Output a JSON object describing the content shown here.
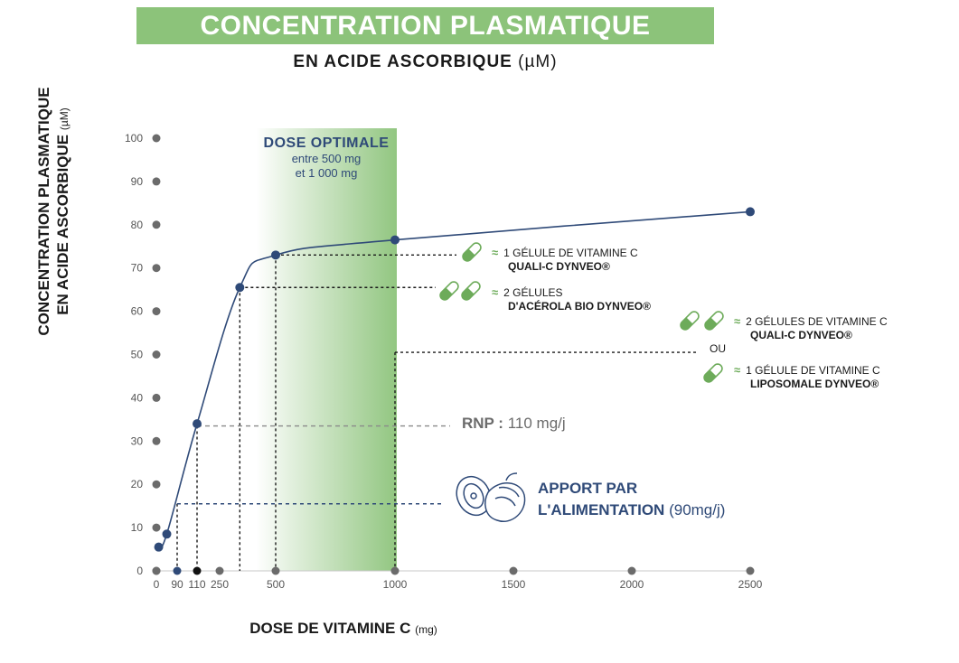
{
  "header": {
    "title": "CONCENTRATION PLASMATIQUE",
    "subtitle_main": "EN ACIDE ASCORBIQUE",
    "subtitle_unit": "(µM)"
  },
  "chart_data": {
    "type": "line",
    "ylabel_line1": "CONCENTRATION PLASMATIQUE",
    "ylabel_line2": "EN ACIDE ASCORBIQUE",
    "ylabel_unit": "(µM)",
    "xlabel": "DOSE DE VITAMINE C",
    "xlabel_unit": "(mg)",
    "ylim": [
      0,
      100
    ],
    "y_ticks": [
      0,
      10,
      20,
      30,
      40,
      50,
      60,
      70,
      80,
      90,
      100
    ],
    "x_ticks": [
      {
        "label": "0",
        "value": 0
      },
      {
        "label": "90",
        "value": 90
      },
      {
        "label": "110",
        "value": 110
      },
      {
        "label": "250",
        "value": 250
      },
      {
        "label": "500",
        "value": 500
      },
      {
        "label": "1000",
        "value": 1000
      },
      {
        "label": "1500",
        "value": 1500
      },
      {
        "label": "2000",
        "value": 2000
      },
      {
        "label": "2500",
        "value": 2500
      }
    ],
    "series": [
      {
        "points": [
          {
            "x": 10,
            "y": 5.5
          },
          {
            "x": 45,
            "y": 8.5
          },
          {
            "x": 110,
            "y": 34
          },
          {
            "x": 340,
            "y": 65.5
          },
          {
            "x": 500,
            "y": 73
          },
          {
            "x": 1000,
            "y": 76.5
          },
          {
            "x": 2500,
            "y": 83
          }
        ]
      }
    ],
    "optimal_range": [
      500,
      1000
    ],
    "guides": [
      {
        "x": 500,
        "y": 73
      },
      {
        "x": 340,
        "y": 65.5
      },
      {
        "x": 1000,
        "y": 50.5
      },
      {
        "x": 110,
        "y": 33.5
      },
      {
        "x": 90,
        "y": 15.5
      }
    ],
    "colors": {
      "line": "#2f4a78",
      "point": "#2f4a78",
      "axis_dot": "#6b6b6b",
      "band": "#8cc37a",
      "accent_green": "#6dab5a"
    }
  },
  "dose_optimale": {
    "heading": "DOSE OPTIMALE",
    "line1": "entre 500 mg",
    "line2": "et 1 000 mg"
  },
  "annotations": {
    "approx": "≈",
    "a1_line1": "1 GÉLULE DE VITAMINE C",
    "a1_line2": "QUALI-C DYNVEO®",
    "a2_line1": "2 GÉLULES",
    "a2_line2": "D'ACÉROLA BIO DYNVEO®",
    "a3_line1": "2 GÉLULES DE VITAMINE C",
    "a3_line2": "QUALI-C DYNVEO®",
    "ou": "OU",
    "a4_line1": "1 GÉLULE DE VITAMINE C",
    "a4_line2": "LIPOSOMALE DYNVEO®"
  },
  "rnp": {
    "label": "RNP :",
    "value": "110 mg/j"
  },
  "apport": {
    "line1": "APPORT PAR",
    "line2_bold": "L'ALIMENTATION",
    "line2_value": "(90mg/j)"
  }
}
